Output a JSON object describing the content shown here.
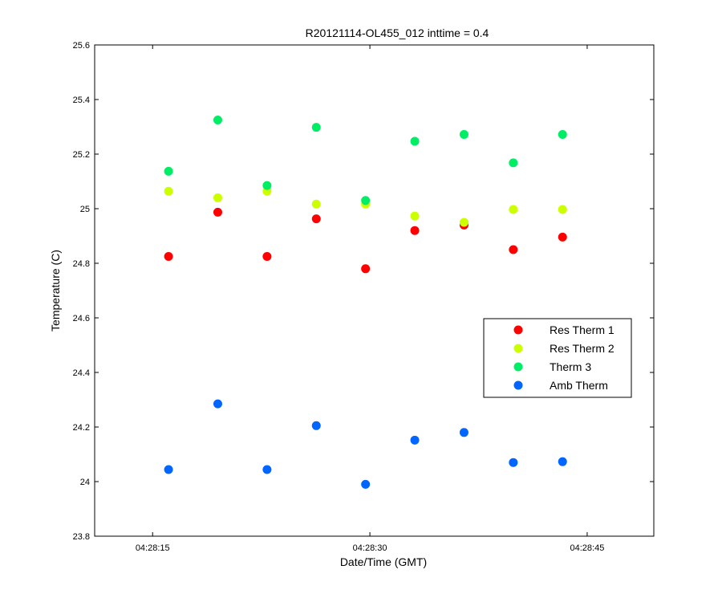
{
  "chart_data": {
    "type": "scatter",
    "title": "R20121114-OL455_012 inttime = 0.4",
    "xlabel": "Date/Time (GMT)",
    "ylabel": "Temperature (C)",
    "x_unit": "seconds after 04:28:00",
    "xlim": [
      11,
      49.6
    ],
    "ylim": [
      23.8,
      25.6
    ],
    "x_ticks": [
      {
        "value": 15,
        "label": "04:28:15"
      },
      {
        "value": 30,
        "label": "04:28:30"
      },
      {
        "value": 45,
        "label": "04:28:45"
      }
    ],
    "y_ticks": [
      {
        "value": 23.8,
        "label": "23.8"
      },
      {
        "value": 24.0,
        "label": "24"
      },
      {
        "value": 24.2,
        "label": "24.2"
      },
      {
        "value": 24.4,
        "label": "24.4"
      },
      {
        "value": 24.6,
        "label": "24.6"
      },
      {
        "value": 24.8,
        "label": "24.8"
      },
      {
        "value": 25.0,
        "label": "25"
      },
      {
        "value": 25.2,
        "label": "25.2"
      },
      {
        "value": 25.4,
        "label": "25.4"
      },
      {
        "value": 25.6,
        "label": "25.6"
      }
    ],
    "x": [
      16.1,
      19.5,
      22.9,
      26.3,
      29.7,
      33.1,
      36.5,
      39.9,
      43.3
    ],
    "grid": false,
    "legend": "right",
    "series": [
      {
        "name": "Res Therm 1",
        "color": "#ff0000",
        "y": [
          24.825,
          24.987,
          24.825,
          24.963,
          24.78,
          24.92,
          24.94,
          24.85,
          24.896
        ]
      },
      {
        "name": "Res Therm 2",
        "color": "#ccff00",
        "y": [
          25.064,
          25.04,
          25.064,
          25.017,
          25.017,
          24.973,
          24.95,
          24.997,
          24.997
        ]
      },
      {
        "name": "Therm 3",
        "color": "#00ee66",
        "y": [
          25.137,
          25.325,
          25.085,
          25.298,
          25.03,
          25.247,
          25.272,
          25.168,
          25.272
        ]
      },
      {
        "name": "Amb Therm",
        "color": "#0066ff",
        "y": [
          24.044,
          24.285,
          24.044,
          24.205,
          23.99,
          24.152,
          24.18,
          24.07,
          24.073
        ]
      }
    ]
  }
}
